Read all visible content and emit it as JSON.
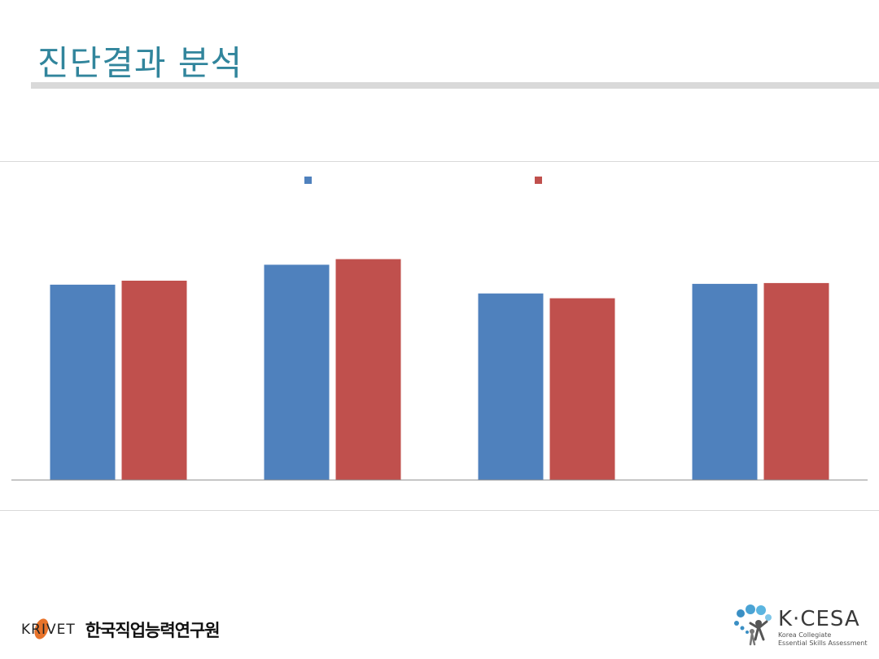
{
  "slide": {
    "title": "진단결과 분석"
  },
  "colors": {
    "title": "#31859c",
    "series_1": "#4f81bd",
    "series_2": "#c0504d"
  },
  "chart_data": {
    "type": "bar",
    "categories": [
      "",
      "",
      "",
      ""
    ],
    "series": [
      {
        "name": "",
        "values": [
          2.45,
          2.7,
          2.34,
          2.46
        ]
      },
      {
        "name": "",
        "values": [
          2.5,
          2.77,
          2.28,
          2.47
        ]
      }
    ],
    "ylim": [
      0,
      4
    ],
    "legend": "top",
    "grid": false
  },
  "footer": {
    "krivet_label": "KRIVET",
    "krivet_name_ko": "한국직업능력연구원",
    "kcesa_label": "K·CESA",
    "kcesa_subtitle": "Korea Collegiate\nEssential Skills Assessment",
    "icons": [
      "krivet-logo-mark",
      "kcesa-logo-mark"
    ]
  }
}
